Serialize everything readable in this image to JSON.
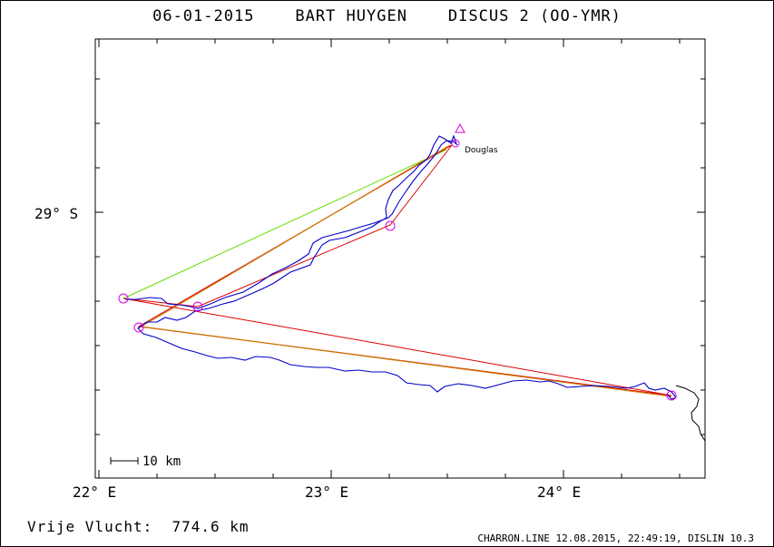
{
  "header": {
    "title": "06-01-2015    BART HUYGEN    DISCUS 2 (OO-YMR)"
  },
  "map": {
    "lat_label": "29° S",
    "lon_labels": [
      "22° E",
      "23° E",
      "24° E"
    ],
    "scale_label": "10 km",
    "place_label": "Douglas"
  },
  "footer": {
    "score": "Vrije Vlucht:  774.6 km",
    "credits": "CHARRON.LINE 12.08.2015, 22:49:19, DISLIN 10.3"
  },
  "colors": {
    "track": "#0000cc",
    "task_line": "#dd0000",
    "optimized_line": "#cc7700",
    "green_line": "#66dd00",
    "turnpoint": "#dd00dd",
    "coast": "#000000"
  }
}
